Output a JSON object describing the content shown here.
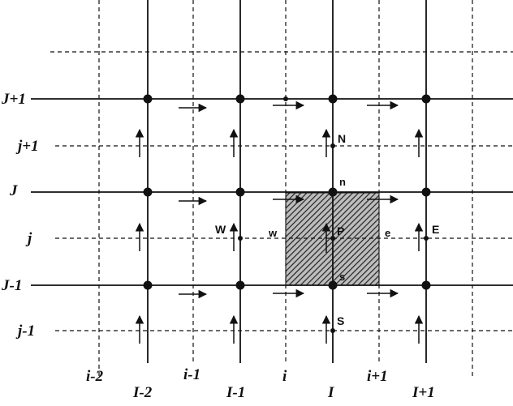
{
  "grid": {
    "solid_row_labels": [
      "J+1",
      "J",
      "J-1"
    ],
    "dashed_row_labels": [
      "j+1",
      "j",
      "j-1"
    ],
    "solid_col_labels": [
      "I-2",
      "I-1",
      "I",
      "I+1"
    ],
    "dashed_col_labels": [
      "i-2",
      "i-1",
      "i",
      "i+1"
    ]
  },
  "nodes": {
    "north": "N",
    "west": "W",
    "center": "P",
    "east": "E",
    "south": "S"
  },
  "faces": {
    "north": "n",
    "west": "w",
    "east": "e",
    "south": "s"
  },
  "colors": {
    "line": "#111111",
    "hatch": "#222222",
    "background": "#ffffff"
  }
}
